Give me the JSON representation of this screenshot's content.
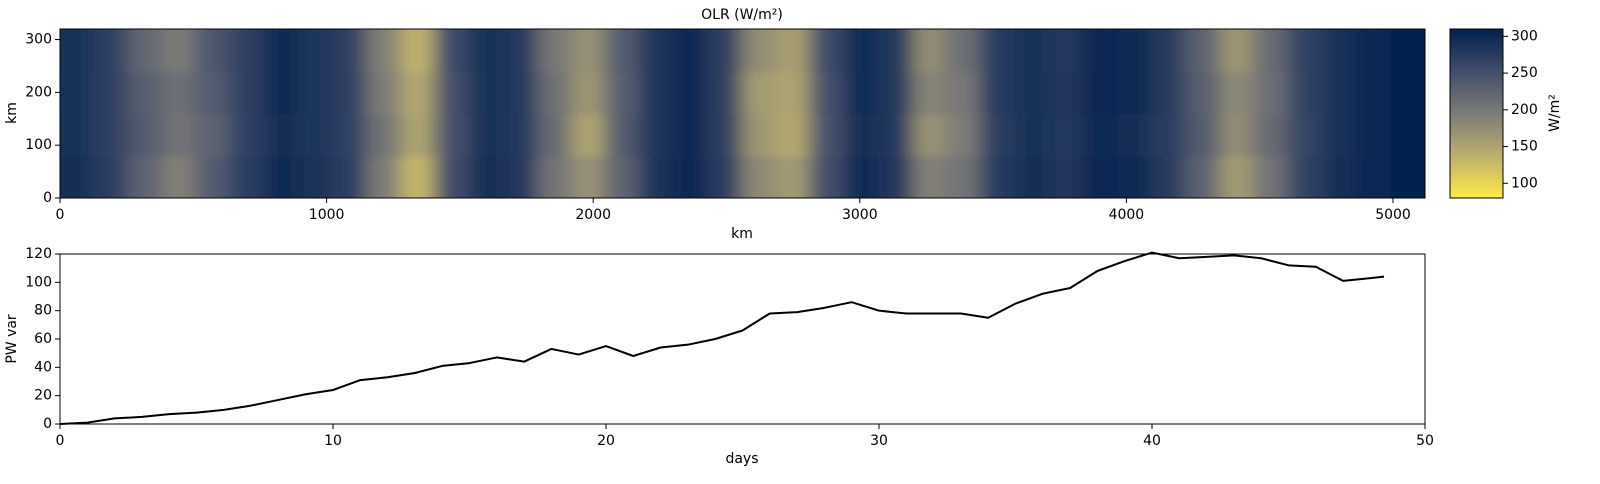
{
  "chart_data": [
    {
      "type": "heatmap",
      "title": "OLR (W/m²)",
      "xlabel": "km",
      "ylabel": "km",
      "xlim": [
        0,
        5120
      ],
      "ylim": [
        0,
        320
      ],
      "xticks": [
        0,
        1000,
        2000,
        3000,
        4000,
        5000
      ],
      "yticks": [
        0,
        100,
        200,
        300
      ],
      "z": [
        [
          292,
          272,
          225,
          190,
          235,
          272,
          296,
          287,
          272,
          195,
          130,
          252,
          292,
          282,
          205,
          170,
          225,
          286,
          301,
          272,
          180,
          160,
          252,
          296,
          282,
          190,
          205,
          276,
          292,
          282,
          300,
          296,
          276,
          225,
          160,
          205,
          266,
          292,
          301,
          305
        ],
        [
          290,
          268,
          235,
          205,
          225,
          268,
          294,
          284,
          268,
          205,
          150,
          248,
          290,
          278,
          215,
          150,
          235,
          284,
          300,
          268,
          165,
          145,
          248,
          294,
          278,
          170,
          195,
          274,
          290,
          278,
          298,
          294,
          274,
          235,
          175,
          215,
          264,
          290,
          300,
          305
        ],
        [
          288,
          270,
          230,
          210,
          235,
          270,
          295,
          285,
          270,
          195,
          145,
          250,
          290,
          280,
          210,
          165,
          230,
          285,
          300,
          270,
          160,
          150,
          250,
          295,
          280,
          185,
          200,
          275,
          290,
          282,
          300,
          295,
          275,
          230,
          180,
          210,
          265,
          290,
          300,
          305
        ],
        [
          290,
          270,
          220,
          195,
          240,
          270,
          295,
          285,
          270,
          190,
          135,
          255,
          290,
          280,
          200,
          170,
          235,
          285,
          300,
          270,
          175,
          155,
          255,
          295,
          280,
          175,
          210,
          275,
          290,
          280,
          300,
          295,
          275,
          225,
          165,
          215,
          265,
          290,
          300,
          305
        ]
      ],
      "colors": [
        "#ffea46",
        "#bcaf6f",
        "#7c7b78",
        "#414d6b",
        "#00204d"
      ],
      "clim": [
        80,
        310
      ],
      "cticks": [
        100,
        150,
        200,
        250,
        300
      ],
      "colorbar_label": "W/m²"
    },
    {
      "type": "line",
      "xlabel": "days",
      "ylabel": "PW var",
      "xlim": [
        0,
        50
      ],
      "ylim": [
        0,
        120
      ],
      "xticks": [
        0,
        10,
        20,
        30,
        40,
        50
      ],
      "yticks": [
        0,
        20,
        40,
        60,
        80,
        100,
        120
      ],
      "series": [
        {
          "color": "#000000",
          "x": [
            0,
            1,
            2,
            3,
            4,
            5,
            6,
            7,
            8,
            9,
            10,
            11,
            12,
            13,
            14,
            15,
            16,
            17,
            18,
            19,
            20,
            21,
            22,
            23,
            24,
            25,
            26,
            27,
            28,
            29,
            30,
            31,
            32,
            33,
            34,
            35,
            36,
            37,
            38,
            39,
            40,
            41,
            42,
            43,
            44,
            45,
            46,
            47,
            48,
            48.5
          ],
          "values": [
            0,
            1,
            4,
            5,
            7,
            8,
            10,
            13,
            17,
            21,
            24,
            31,
            33,
            36,
            41,
            43,
            47,
            44,
            53,
            49,
            55,
            48,
            54,
            56,
            60,
            66,
            78,
            79,
            82,
            86,
            80,
            78,
            78,
            78,
            75,
            85,
            92,
            96,
            108,
            115,
            121,
            117,
            118,
            119,
            117,
            112,
            111,
            101,
            103,
            104
          ]
        }
      ]
    }
  ]
}
